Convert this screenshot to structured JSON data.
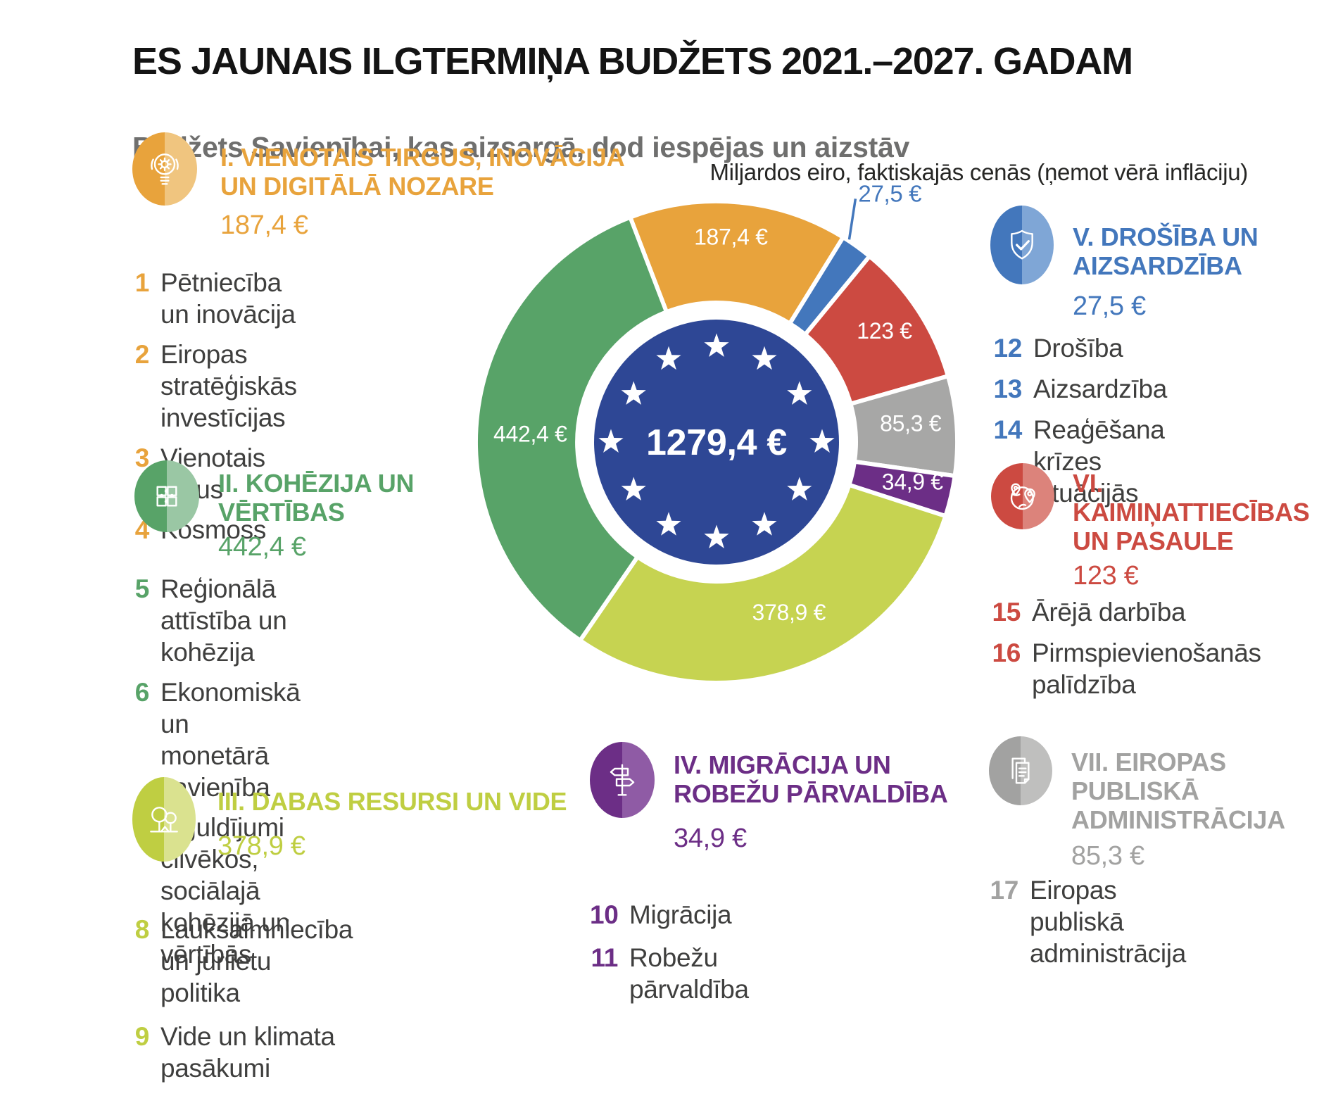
{
  "header": {
    "title": "ES JAUNAIS ILGTERMIŅA BUDŽETS 2021.–2027. GADAM",
    "subtitle": "Budžets Savienībai, kas aizsargā, dod iespējas un aizstāv"
  },
  "note": "Miljardos eiro, faktiskajās cenās (ņemot vērā inflāciju)",
  "chart_data": {
    "type": "pie",
    "title": "ES jaunais ilgtermiņa budžets 2021.–2027. gadam",
    "unit_label": "Miljardos eiro, faktiskajās cenās (ņemot vērā inflāciju)",
    "total": 1279.4,
    "start_angle_deg": -21,
    "center": {
      "label": "1279,4 €",
      "color": "#2E4795"
    },
    "segments": [
      {
        "name": "I. Vienotais tirgus, inovācija un digitālā nozare",
        "label": "187,4 €",
        "value": 187.4,
        "color": "#E8A33C"
      },
      {
        "name": "V. Drošība un aizsardzība",
        "label": "27,5 €",
        "value": 27.5,
        "color": "#4377BC",
        "label_outside": true
      },
      {
        "name": "VI. Kaimiņattiecības un pasaule",
        "label": "123 €",
        "value": 123,
        "color": "#CC4A41"
      },
      {
        "name": "VII. Eiropas publiskā administrācija",
        "label": "85,3 €",
        "value": 85.3,
        "color": "#A7A7A6"
      },
      {
        "name": "IV. Migrācija un robežu pārvaldība",
        "label": "34,9 €",
        "value": 34.9,
        "color": "#6C2E86"
      },
      {
        "name": "III. Dabas resursi un vide",
        "label": "378,9 €",
        "value": 378.9,
        "color": "#C6D351"
      },
      {
        "name": "II. Kohēzija un vērtības",
        "label": "442,4 €",
        "value": 442.4,
        "color": "#58A368"
      }
    ]
  },
  "sections": [
    {
      "id": "I",
      "color": "#E8A33C",
      "color_light": "#F0C57F",
      "title": "I. VIENOTAIS TIRGUS, INOVĀCIJA\nUN DIGITĀLĀ NOZARE",
      "value": "187,4 €",
      "items": [
        {
          "num": "1",
          "text": "Pētniecība un inovācija"
        },
        {
          "num": "2",
          "text": "Eiropas stratēģiskās investīcijas"
        },
        {
          "num": "3",
          "text": "Vienotais tirgus"
        },
        {
          "num": "4",
          "text": "Kosmoss"
        }
      ]
    },
    {
      "id": "II",
      "color": "#58A368",
      "color_light": "#9AC7A4",
      "title": "II. KOHĒZIJA UN\nVĒRTĪBAS",
      "value": "442,4 €",
      "items": [
        {
          "num": "5",
          "text": "Reģionālā attīstība un kohēzija"
        },
        {
          "num": "6",
          "text": "Ekonomiskā un monetārā\nsavienība"
        },
        {
          "num": "7",
          "text": "Ieguldījumi cilvēkos, sociālajā\nkohēzijā un vērtībās"
        }
      ]
    },
    {
      "id": "III",
      "color": "#BFCE42",
      "color_light": "#DAE28F",
      "title": "III. DABAS RESURSI UN VIDE",
      "value": "378,9 €",
      "items": [
        {
          "num": "8",
          "text": "Lauksaimniecība un jūrlietu politika"
        },
        {
          "num": "9",
          "text": "Vide un klimata pasākumi"
        }
      ]
    },
    {
      "id": "IV",
      "color": "#6C2E86",
      "color_light": "#8F5BA5",
      "title": "IV. MIGRĀCIJA UN\nROBEŽU PĀRVALDĪBA",
      "value": "34,9 €",
      "items": [
        {
          "num": "10",
          "text": "Migrācija"
        },
        {
          "num": "11",
          "text": "Robežu pārvaldība"
        }
      ]
    },
    {
      "id": "V",
      "color": "#4377BC",
      "color_light": "#7FA6D6",
      "title": "V. DROŠĪBA UN\nAIZSARDZĪBA",
      "value": "27,5 €",
      "items": [
        {
          "num": "12",
          "text": "Drošība"
        },
        {
          "num": "13",
          "text": "Aizsardzība"
        },
        {
          "num": "14",
          "text": "Reaģēšana krīzes\nsituācijās"
        }
      ]
    },
    {
      "id": "VI",
      "color": "#CC4A41",
      "color_light": "#DC837B",
      "title": "VI.\nKAIMIŅATTIECĪBAS\nUN PASAULE",
      "value": "123 €",
      "items": [
        {
          "num": "15",
          "text": "Ārējā darbība"
        },
        {
          "num": "16",
          "text": "Pirmspievienošanās\npalīdzība"
        }
      ]
    },
    {
      "id": "VII",
      "color": "#A2A2A1",
      "color_light": "#BFBFBE",
      "title": "VII. EIROPAS\nPUBLISKĀ\nADMINISTRĀCIJA",
      "value": "85,3 €",
      "items": [
        {
          "num": "17",
          "text": "Eiropas publiskā\nadministrācija"
        }
      ]
    }
  ]
}
